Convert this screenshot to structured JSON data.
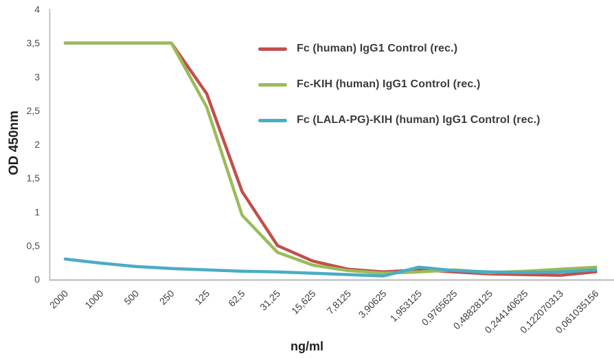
{
  "chart_data": {
    "type": "line",
    "title": "",
    "xlabel": "ng/ml",
    "ylabel": "OD 450nm",
    "ylim": [
      0,
      4
    ],
    "grid": "off",
    "legend_position": "inside-top-right",
    "decimal_separator": ",",
    "yticks": {
      "values": [
        4,
        3.5,
        3,
        2.5,
        2,
        1.5,
        1,
        0.5,
        0
      ],
      "labels": [
        "4",
        "3,5",
        "3",
        "2,5",
        "2",
        "1,5",
        "1",
        "0,5",
        "0"
      ]
    },
    "categories": [
      "2000",
      "1000",
      "500",
      "250",
      "125",
      "62,5",
      "31,25",
      "15,625",
      "7,8125",
      "3,90625",
      "1,953125",
      "0,9765625",
      "0,48828125",
      "0,244140625",
      "0,122070313",
      "0,061035156"
    ],
    "series": [
      {
        "name": "Fc (human) IgG1 Control (rec.)",
        "color": "#C0504D",
        "values": [
          3.5,
          3.5,
          3.5,
          3.5,
          2.75,
          1.3,
          0.5,
          0.27,
          0.15,
          0.11,
          0.14,
          0.11,
          0.08,
          0.07,
          0.06,
          0.11
        ]
      },
      {
        "name": "Fc-KIH (human) IgG1 Control (rec.)",
        "color": "#9BBB59",
        "values": [
          3.5,
          3.5,
          3.5,
          3.5,
          2.55,
          0.95,
          0.4,
          0.21,
          0.13,
          0.09,
          0.11,
          0.14,
          0.1,
          0.12,
          0.15,
          0.18
        ]
      },
      {
        "name": "Fc (LALA-PG)-KIH (human) IgG1 Control (rec.)",
        "color": "#4BACC6",
        "values": [
          0.3,
          0.24,
          0.19,
          0.16,
          0.14,
          0.12,
          0.11,
          0.09,
          0.07,
          0.05,
          0.18,
          0.13,
          0.11,
          0.1,
          0.11,
          0.14
        ]
      }
    ]
  },
  "colors": {
    "axis_line": "#c3c3c3",
    "tick_text": "#4d4d4d",
    "axis_title_text": "#1f1f1f",
    "legend_text": "#3b3b3b",
    "background": "#ffffff"
  }
}
